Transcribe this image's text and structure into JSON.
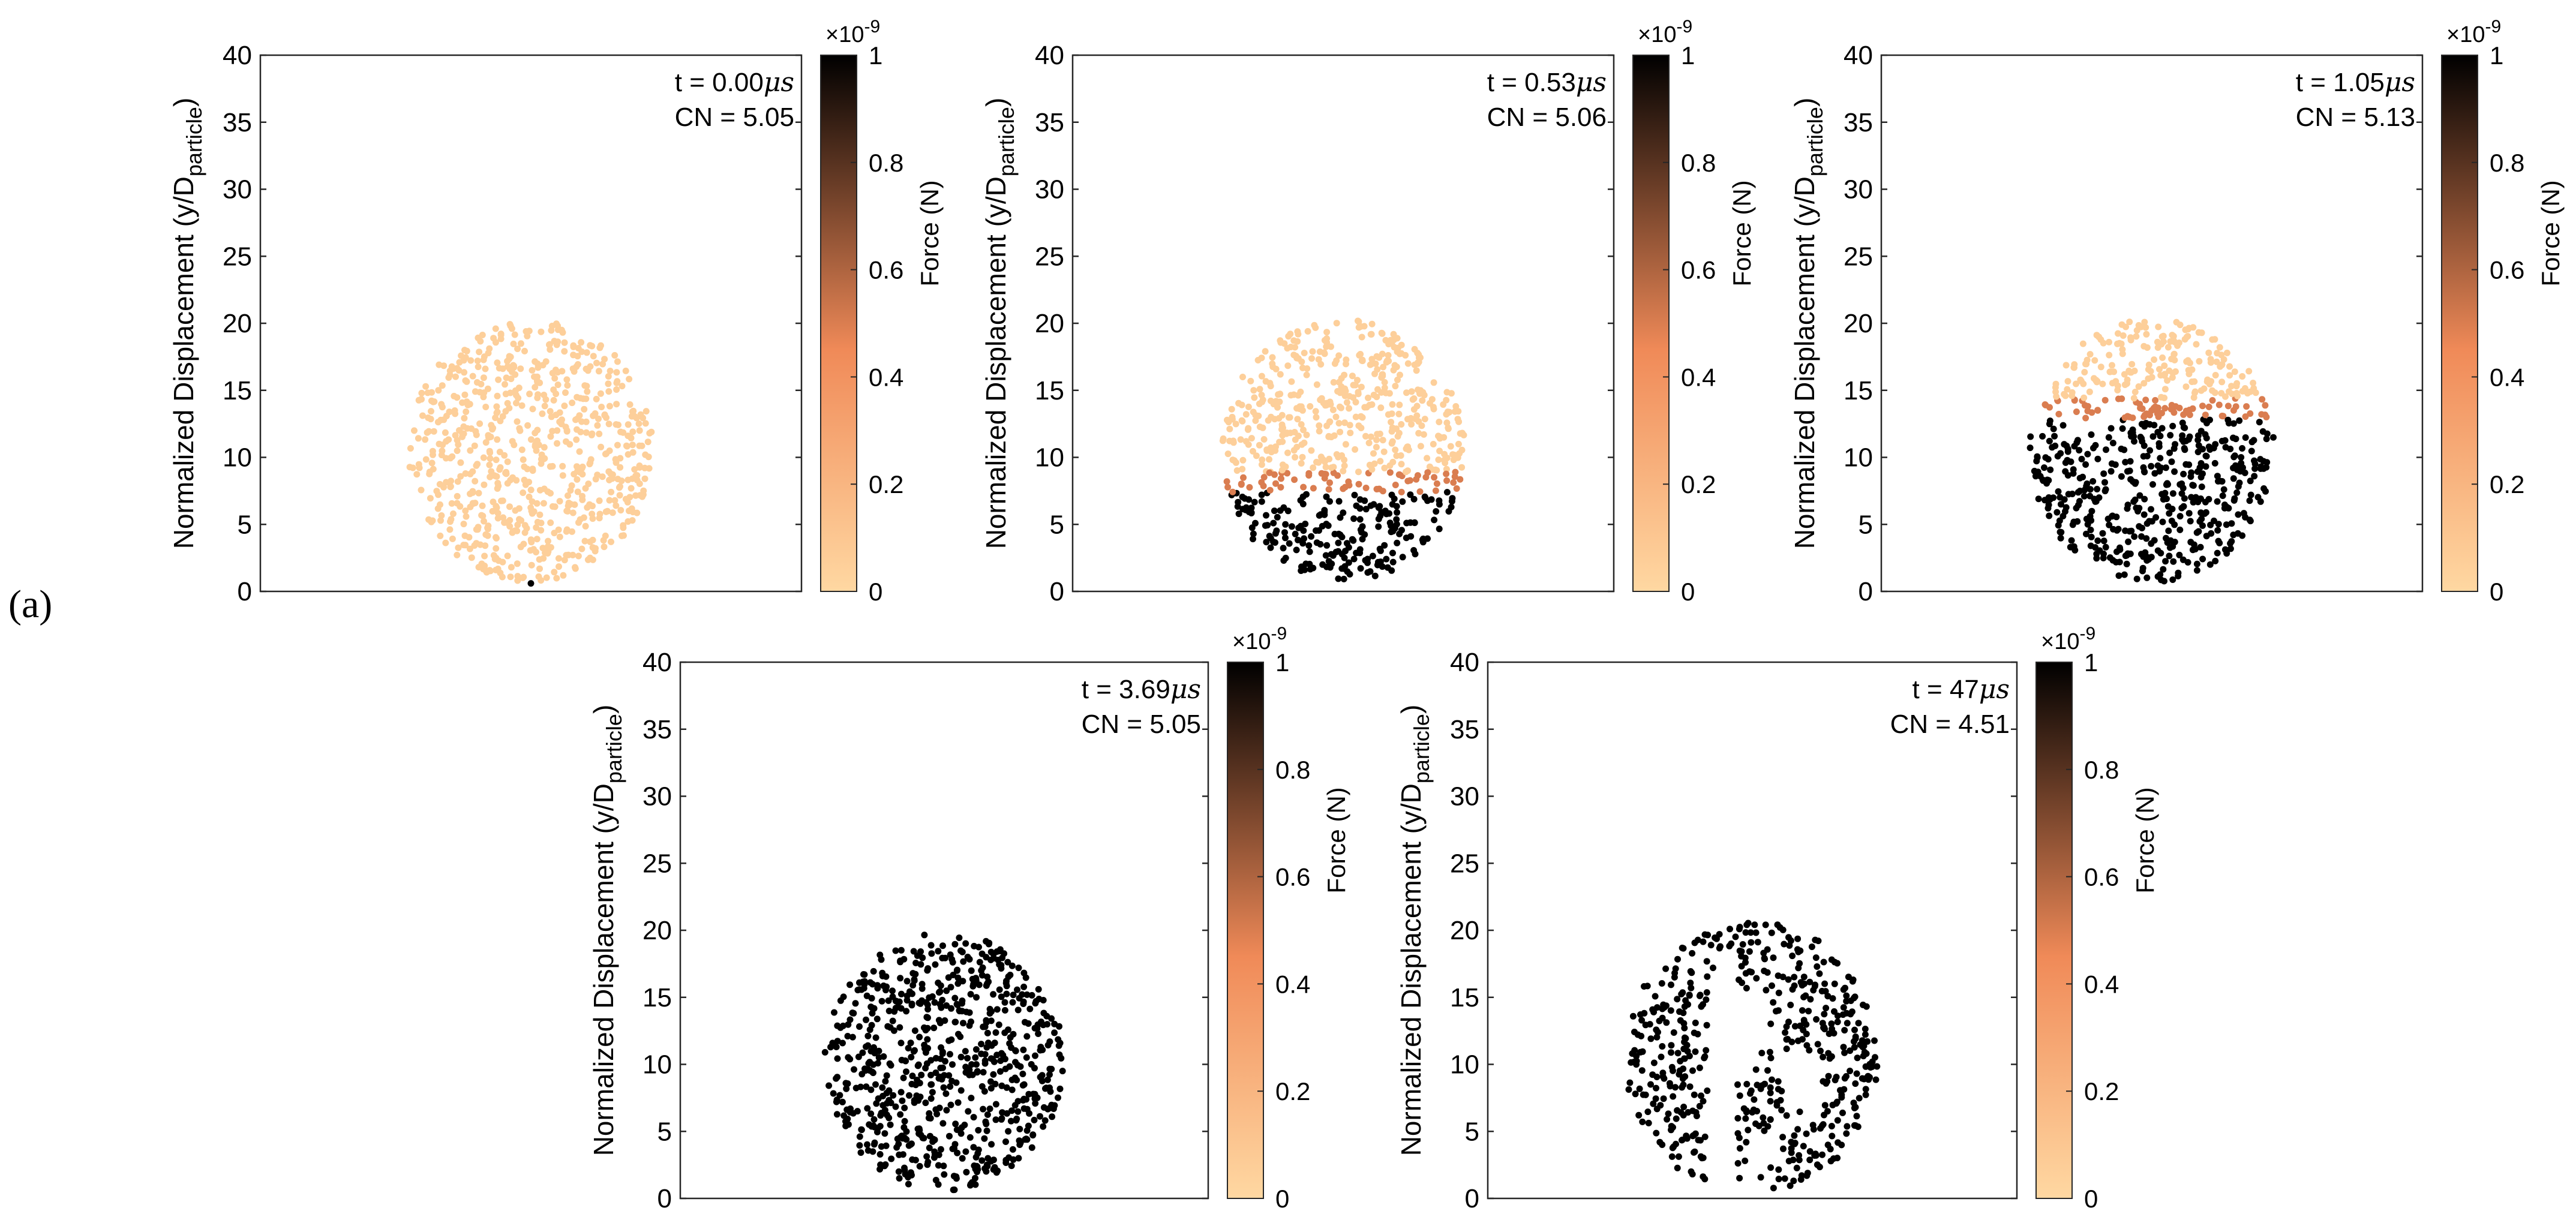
{
  "figure_label": "(a)",
  "colormap": {
    "low": "#ffd8a2",
    "mid": "#f08a58",
    "high": "#000000"
  },
  "chart_data": [
    {
      "type": "scatter",
      "panel": 1,
      "title": "",
      "annotation_time": "t = 0.00",
      "annotation_unit": "μs",
      "annotation_cn": "CN = 5.05",
      "xlabel": "",
      "ylabel": "Normalized Displacement (y/D",
      "ylabel_sub": "particle",
      "ylabel_close": ")",
      "ylim": [
        0,
        40
      ],
      "yticks": [
        "0",
        "5",
        "10",
        "15",
        "20",
        "25",
        "30",
        "35",
        "40"
      ],
      "particle_cluster": {
        "center_y": 10.5,
        "radius": 9.8,
        "count": 720
      },
      "force_front_y": -5,
      "outlier_points": [
        {
          "y": 0.6,
          "force": 1.0
        }
      ],
      "colorbar": {
        "label": "Force (N)",
        "exponent": "×10",
        "exponent_power": "-9",
        "ticks": [
          "0",
          "0.2",
          "0.4",
          "0.6",
          "0.8",
          "1"
        ],
        "range": [
          0,
          1
        ]
      }
    },
    {
      "type": "scatter",
      "panel": 2,
      "title": "",
      "annotation_time": "t = 0.53",
      "annotation_unit": "μs",
      "annotation_cn": "CN = 5.06",
      "xlabel": "",
      "ylabel": "Normalized Displacement (y/D",
      "ylabel_sub": "particle",
      "ylabel_close": ")",
      "ylim": [
        0,
        40
      ],
      "yticks": [
        "0",
        "5",
        "10",
        "15",
        "20",
        "25",
        "30",
        "35",
        "40"
      ],
      "particle_cluster": {
        "center_y": 10.5,
        "radius": 9.8,
        "count": 720
      },
      "force_front_y": 8.0,
      "colorbar": {
        "label": "Force (N)",
        "exponent": "×10",
        "exponent_power": "-9",
        "ticks": [
          "0",
          "0.2",
          "0.4",
          "0.6",
          "0.8",
          "1"
        ],
        "range": [
          0,
          1
        ]
      }
    },
    {
      "type": "scatter",
      "panel": 3,
      "title": "",
      "annotation_time": "t = 1.05",
      "annotation_unit": "μs",
      "annotation_cn": "CN = 5.13",
      "xlabel": "",
      "ylabel": "Normalized Displacement (y/D",
      "ylabel_sub": "particle",
      "ylabel_close": ")",
      "ylim": [
        0,
        40
      ],
      "yticks": [
        "0",
        "5",
        "10",
        "15",
        "20",
        "25",
        "30",
        "35",
        "40"
      ],
      "particle_cluster": {
        "center_y": 10.5,
        "radius": 9.8,
        "count": 720
      },
      "force_front_y": 13.5,
      "colorbar": {
        "label": "Force (N)",
        "exponent": "×10",
        "exponent_power": "-9",
        "ticks": [
          "0",
          "0.2",
          "0.4",
          "0.6",
          "0.8",
          "1"
        ],
        "range": [
          0,
          1
        ]
      }
    },
    {
      "type": "scatter",
      "panel": 4,
      "title": "",
      "annotation_time": "t = 3.69",
      "annotation_unit": "μs",
      "annotation_cn": "CN = 5.05",
      "xlabel": "",
      "ylabel": "Normalized Displacement (y/D",
      "ylabel_sub": "particle",
      "ylabel_close": ")",
      "ylim": [
        0,
        40
      ],
      "yticks": [
        "0",
        "5",
        "10",
        "15",
        "20",
        "25",
        "30",
        "35",
        "40"
      ],
      "particle_cluster": {
        "center_y": 10.2,
        "radius": 9.6,
        "count": 720
      },
      "force_front_y": 40,
      "colorbar": {
        "label": "Force (N)",
        "exponent": "×10",
        "exponent_power": "-9",
        "ticks": [
          "0",
          "0.2",
          "0.4",
          "0.6",
          "0.8",
          "1"
        ],
        "range": [
          0,
          1
        ]
      }
    },
    {
      "type": "scatter",
      "panel": 5,
      "title": "",
      "annotation_time": "t = 47",
      "annotation_unit": "μs",
      "annotation_cn": "CN = 4.51",
      "xlabel": "",
      "ylabel": "Normalized Displacement (y/D",
      "ylabel_sub": "particle",
      "ylabel_close": ")",
      "ylim": [
        0,
        40
      ],
      "yticks": [
        "0",
        "5",
        "10",
        "15",
        "20",
        "25",
        "30",
        "35",
        "40"
      ],
      "particle_cluster": {
        "center_y": 10.5,
        "radius": 10.2,
        "count": 520,
        "fragmented": true
      },
      "force_front_y": 40,
      "colorbar": {
        "label": "Force (N)",
        "exponent": "×10",
        "exponent_power": "-9",
        "ticks": [
          "0",
          "0.2",
          "0.4",
          "0.6",
          "0.8",
          "1"
        ],
        "range": [
          0,
          1
        ]
      }
    }
  ]
}
